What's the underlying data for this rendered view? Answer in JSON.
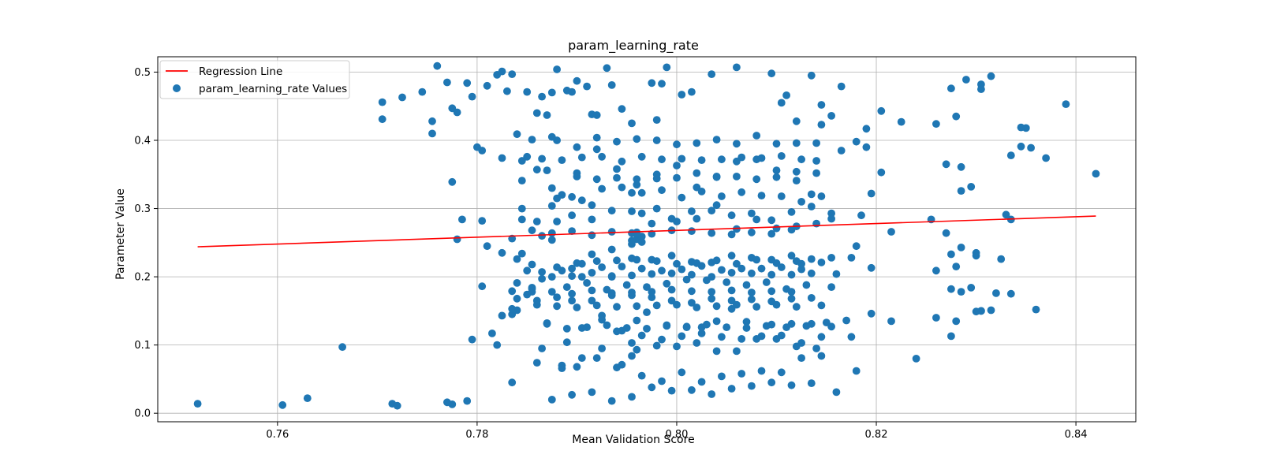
{
  "chart_data": {
    "type": "scatter",
    "title": "param_learning_rate",
    "xlabel": "Mean Validation Score",
    "ylabel": "Parameter Value",
    "xlim": [
      0.748,
      0.846
    ],
    "ylim": [
      -0.0125,
      0.5225
    ],
    "xticks": [
      "0.76",
      "0.78",
      "0.80",
      "0.82",
      "0.84"
    ],
    "yticks": [
      "0.0",
      "0.1",
      "0.2",
      "0.3",
      "0.4",
      "0.5"
    ],
    "grid": true,
    "legend_position": "top-left",
    "colors": {
      "points": "#1f77b4",
      "regression": "#ff0000"
    },
    "regression_line": {
      "name": "Regression Line",
      "x": [
        0.752,
        0.842
      ],
      "y": [
        0.244,
        0.289
      ]
    },
    "series": [
      {
        "name": "param_learning_rate Values",
        "x": [
          0.752,
          0.7605,
          0.763,
          0.7665,
          0.7715,
          0.772,
          0.777,
          0.7775,
          0.779,
          0.7705,
          0.7705,
          0.7725,
          0.7745,
          0.7755,
          0.7755,
          0.776,
          0.777,
          0.7775,
          0.778,
          0.779,
          0.7795,
          0.78,
          0.7805,
          0.781,
          0.782,
          0.7825,
          0.783,
          0.7835,
          0.784,
          0.785,
          0.7865,
          0.787,
          0.7875,
          0.788,
          0.789,
          0.7895,
          0.79,
          0.791,
          0.7915,
          0.792,
          0.793,
          0.7935,
          0.7945,
          0.7955,
          0.7975,
          0.798,
          0.7985,
          0.799,
          0.8005,
          0.8015,
          0.8035,
          0.806,
          0.8095,
          0.8105,
          0.811,
          0.812,
          0.8135,
          0.8145,
          0.8155,
          0.8165,
          0.818,
          0.819,
          0.8205,
          0.8225,
          0.826,
          0.8275,
          0.828,
          0.829,
          0.8305,
          0.8305,
          0.8315,
          0.8335,
          0.8345,
          0.835,
          0.8355,
          0.837,
          0.839,
          0.842,
          0.7775,
          0.778,
          0.7795,
          0.7805,
          0.782,
          0.7835,
          0.7855,
          0.787,
          0.789,
          0.7905,
          0.7925,
          0.794,
          0.796,
          0.797,
          0.799,
          0.801,
          0.8025,
          0.804,
          0.8055,
          0.807,
          0.8095,
          0.8115,
          0.8135,
          0.815,
          0.817,
          0.8195,
          0.8215,
          0.826,
          0.828,
          0.8305,
          0.836,
          0.7835,
          0.7845,
          0.785,
          0.7875,
          0.7895,
          0.7915,
          0.7935,
          0.7955,
          0.7965,
          0.798,
          0.8,
          0.802,
          0.804,
          0.806,
          0.808,
          0.81,
          0.812,
          0.814,
          0.8155,
          0.8185,
          0.8255,
          0.8295,
          0.8335,
          0.7785,
          0.7805,
          0.7825,
          0.784,
          0.7865,
          0.7885,
          0.7905,
          0.7925,
          0.7945,
          0.7965,
          0.7985,
          0.8005,
          0.8025,
          0.8045,
          0.8065,
          0.8085,
          0.8105,
          0.8125,
          0.8145,
          0.818,
          0.824,
          0.8305,
          0.784,
          0.7855,
          0.7875,
          0.7895,
          0.7915,
          0.7935,
          0.7955,
          0.7975,
          0.7995,
          0.8015,
          0.8035,
          0.8055,
          0.8075,
          0.8095,
          0.8115,
          0.8135,
          0.816,
          0.7835,
          0.786,
          0.788,
          0.79,
          0.792,
          0.794,
          0.796,
          0.798,
          0.8,
          0.802,
          0.804,
          0.806,
          0.808,
          0.81,
          0.812,
          0.814,
          0.7955,
          0.7955,
          0.796,
          0.796,
          0.7965,
          0.7955,
          0.796,
          0.7965,
          0.7955,
          0.796,
          0.781,
          0.7835,
          0.786,
          0.788,
          0.79,
          0.792,
          0.794,
          0.796,
          0.798,
          0.8,
          0.802,
          0.804,
          0.806,
          0.808,
          0.81,
          0.812,
          0.814,
          0.8165,
          0.819,
          0.827,
          0.8285,
          0.7825,
          0.785,
          0.7875,
          0.7895,
          0.7915,
          0.7935,
          0.7955,
          0.7975,
          0.7995,
          0.8015,
          0.8035,
          0.8055,
          0.8075,
          0.8095,
          0.8115,
          0.8135,
          0.8155,
          0.8175,
          0.8275,
          0.83,
          0.7825,
          0.7845,
          0.7865,
          0.7885,
          0.7905,
          0.7925,
          0.7945,
          0.7965,
          0.7985,
          0.8005,
          0.8025,
          0.8045,
          0.8065,
          0.8085,
          0.8105,
          0.8125,
          0.8145,
          0.8175,
          0.8275,
          0.7815,
          0.784,
          0.786,
          0.788,
          0.79,
          0.792,
          0.794,
          0.796,
          0.798,
          0.8,
          0.802,
          0.804,
          0.806,
          0.808,
          0.81,
          0.812,
          0.814,
          0.7855,
          0.7875,
          0.7895,
          0.7915,
          0.7935,
          0.7955,
          0.7975,
          0.7995,
          0.8015,
          0.8035,
          0.8055,
          0.8075,
          0.8095,
          0.8115,
          0.8135,
          0.8155,
          0.833,
          0.7845,
          0.7865,
          0.7885,
          0.7905,
          0.7925,
          0.7945,
          0.7965,
          0.7985,
          0.8005,
          0.8025,
          0.8045,
          0.8065,
          0.8085,
          0.8105,
          0.8125,
          0.8145,
          0.8195,
          0.8285,
          0.8325,
          0.785,
          0.787,
          0.789,
          0.791,
          0.793,
          0.795,
          0.797,
          0.799,
          0.801,
          0.803,
          0.805,
          0.807,
          0.809,
          0.811,
          0.813,
          0.8155,
          0.8295,
          0.7855,
          0.7875,
          0.7895,
          0.7915,
          0.7935,
          0.7955,
          0.7975,
          0.7995,
          0.8015,
          0.8035,
          0.8055,
          0.8075,
          0.8095,
          0.8115,
          0.8135,
          0.832,
          0.8335,
          0.786,
          0.788,
          0.79,
          0.792,
          0.794,
          0.796,
          0.798,
          0.8,
          0.802,
          0.804,
          0.806,
          0.808,
          0.81,
          0.812,
          0.814,
          0.8205,
          0.7845,
          0.7865,
          0.7885,
          0.7905,
          0.7925,
          0.7945,
          0.7965,
          0.7985,
          0.8005,
          0.8025,
          0.8045,
          0.8065,
          0.8085,
          0.8105,
          0.8125,
          0.8195,
          0.826,
          0.83,
          0.8315,
          0.786,
          0.788,
          0.79,
          0.792,
          0.794,
          0.796,
          0.798,
          0.8,
          0.802,
          0.804,
          0.806,
          0.808,
          0.81,
          0.812,
          0.8125,
          0.8145,
          0.7875,
          0.7895,
          0.7915,
          0.7935,
          0.7955,
          0.7975,
          0.7995,
          0.8015,
          0.8035,
          0.8055,
          0.8075,
          0.8095,
          0.8115,
          0.8135,
          0.816,
          0.818,
          0.787,
          0.789,
          0.791,
          0.793,
          0.795,
          0.797,
          0.799,
          0.801,
          0.803,
          0.805,
          0.807,
          0.809,
          0.811,
          0.813,
          0.8155,
          0.8345,
          0.7845,
          0.7865,
          0.7885,
          0.7905,
          0.7925,
          0.7945,
          0.7965,
          0.7985,
          0.8005,
          0.8025,
          0.8045,
          0.8065,
          0.8085,
          0.8105,
          0.8125,
          0.8145,
          0.8215,
          0.827,
          0.7855,
          0.7875,
          0.7895,
          0.7915,
          0.7935,
          0.7955,
          0.7975,
          0.7995,
          0.8015,
          0.8035,
          0.8055,
          0.8075,
          0.8095,
          0.8115,
          0.8135,
          0.784,
          0.786,
          0.788,
          0.79,
          0.792,
          0.794,
          0.796,
          0.798,
          0.8,
          0.802,
          0.804,
          0.806,
          0.808,
          0.81,
          0.812,
          0.8145,
          0.8285,
          0.7835,
          0.7855,
          0.7875,
          0.7895,
          0.7915,
          0.7935,
          0.7955,
          0.7975,
          0.7995,
          0.8015,
          0.8035,
          0.8055,
          0.8075,
          0.8095,
          0.8115,
          0.8275,
          0.83,
          0.828,
          0.8285
        ]
      }
    ]
  }
}
